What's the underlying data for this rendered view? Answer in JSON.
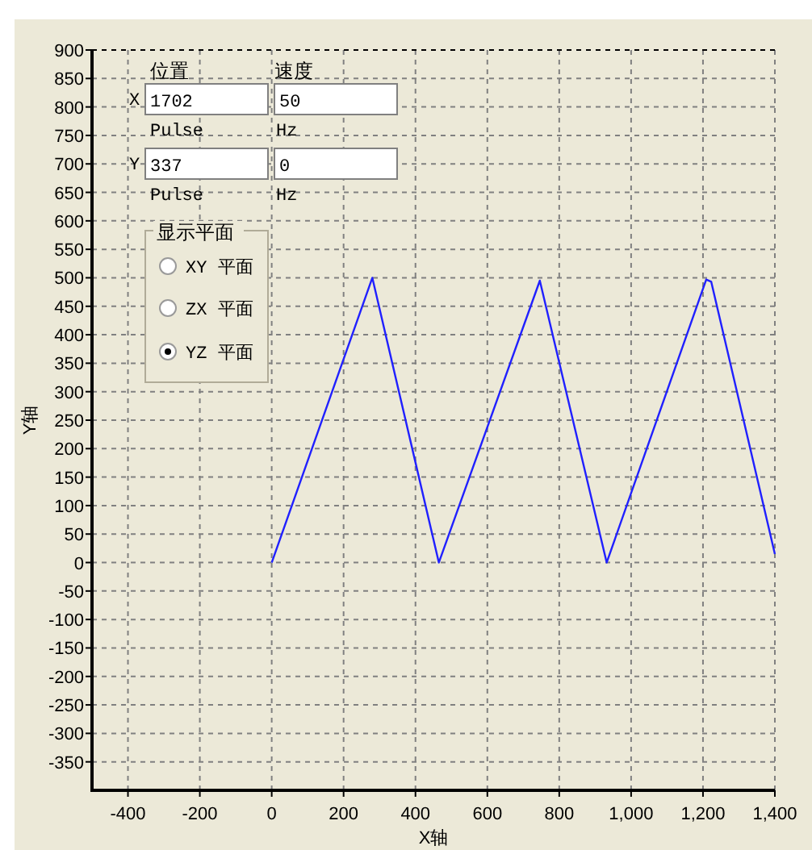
{
  "chart_data": {
    "type": "line",
    "xlabel": "X轴",
    "ylabel": "Y轴",
    "x": [
      0,
      280,
      465,
      746,
      932,
      1209,
      1223,
      1400
    ],
    "series": [
      {
        "color": "#2020ff",
        "values": [
          0,
          500,
          0,
          495,
          0,
          497,
          493,
          15
        ]
      }
    ],
    "xlim": [
      -500,
      1400
    ],
    "ylim": [
      -400,
      900
    ],
    "xticks": [
      -400,
      -200,
      0,
      200,
      400,
      600,
      800,
      {
        "value": 1000,
        "label": "1,000"
      },
      {
        "value": 1200,
        "label": "1,200"
      },
      {
        "value": 1400,
        "label": "1,400"
      }
    ],
    "yticks": [
      -350,
      -300,
      -250,
      -200,
      -150,
      -100,
      -50,
      0,
      50,
      100,
      150,
      200,
      250,
      300,
      350,
      400,
      450,
      500,
      550,
      600,
      650,
      700,
      750,
      800,
      850,
      900
    ],
    "grid": true,
    "annotations": [
      "位置",
      "速度",
      "X",
      "1702",
      "50",
      "Pulse",
      "Hz",
      "Y",
      "337",
      "0",
      "Pulse",
      "Hz",
      "显示平面",
      "XY 平面",
      "ZX 平面",
      "YZ 平面"
    ]
  }
}
